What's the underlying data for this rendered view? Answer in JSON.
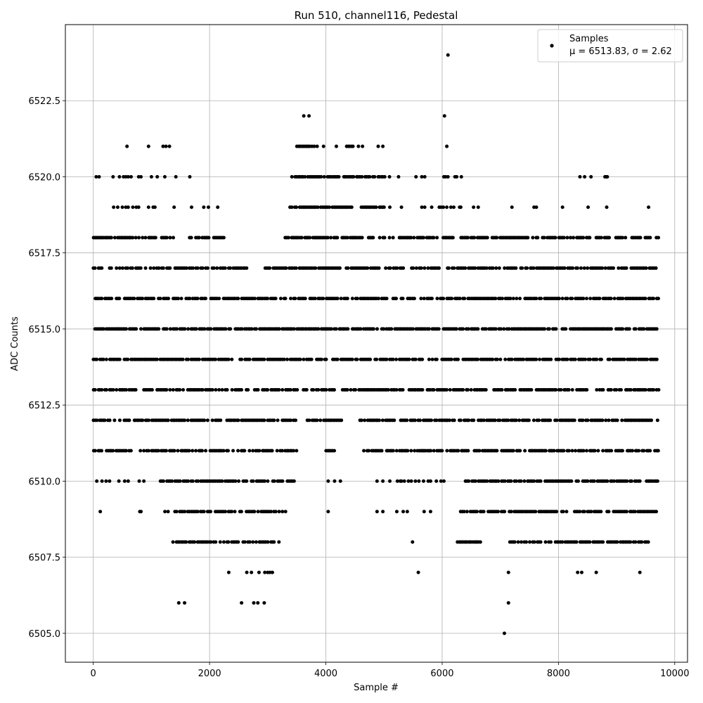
{
  "chart_data": {
    "type": "scatter",
    "title": "Run 510, channel116, Pedestal",
    "xlabel": "Sample #",
    "ylabel": "ADC Counts",
    "xlim": [
      -480,
      10220
    ],
    "ylim": [
      6504.05,
      6525.0
    ],
    "xticks": [
      0,
      2000,
      4000,
      6000,
      8000,
      10000
    ],
    "xtick_labels": [
      "0",
      "2000",
      "4000",
      "6000",
      "8000",
      "10000"
    ],
    "yticks": [
      6505.0,
      6507.5,
      6510.0,
      6512.5,
      6515.0,
      6517.5,
      6520.0,
      6522.5
    ],
    "ytick_labels": [
      "6505.0",
      "6507.5",
      "6510.0",
      "6512.5",
      "6515.0",
      "6517.5",
      "6520.0",
      "6522.5"
    ],
    "grid": true,
    "legend": {
      "placement": "top-right",
      "label": "Samples",
      "stats_text": "μ = 6513.83, σ = 2.62"
    },
    "stats": {
      "mean": 6513.83,
      "sigma": 2.62
    },
    "marker_color": "#000000",
    "sample_count_approx": 9720,
    "series": [
      {
        "name": "Samples",
        "level_ranges": [
          {
            "y": 6514,
            "ranges": [
              [
                0,
                9720
              ]
            ]
          },
          {
            "y": 6513,
            "ranges": [
              [
                0,
                9720
              ]
            ]
          },
          {
            "y": 6517,
            "ranges": [
              [
                0,
                2650
              ],
              [
                2950,
                9720
              ]
            ]
          },
          {
            "y": 6516,
            "ranges": [
              [
                0,
                9720
              ]
            ]
          },
          {
            "y": 6515,
            "ranges": [
              [
                30,
                9720
              ]
            ]
          },
          {
            "y": 6512,
            "ranges": [
              [
                0,
                3500
              ],
              [
                3650,
                4300
              ],
              [
                4580,
                9720
              ]
            ]
          },
          {
            "y": 6518,
            "ranges": [
              [
                0,
                1380
              ],
              [
                1650,
                2250
              ],
              [
                3300,
                9720
              ]
            ]
          },
          {
            "y": 6511,
            "ranges": [
              [
                0,
                650
              ],
              [
                750,
                3500
              ],
              [
                4000,
                4150
              ],
              [
                4650,
                6450
              ],
              [
                6550,
                9720
              ]
            ]
          },
          {
            "y": 6510,
            "ranges": [
              [
                1150,
                3450
              ],
              [
                6400,
                9720
              ]
            ]
          },
          {
            "y": 6509,
            "ranges": [
              [
                1230,
                3310
              ],
              [
                6260,
                9720
              ]
            ]
          },
          {
            "y": 6508,
            "ranges": [
              [
                1370,
                3210
              ],
              [
                6260,
                6660
              ],
              [
                7050,
                9620
              ]
            ]
          },
          {
            "y": 6519,
            "ranges": [
              [
                3380,
                4300
              ],
              [
                4300,
                5000
              ]
            ]
          },
          {
            "y": 6520,
            "ranges": [
              [
                3380,
                4500
              ],
              [
                4500,
                5100
              ]
            ]
          },
          {
            "y": 6521,
            "ranges": [
              [
                3500,
                3700
              ],
              [
                4350,
                4480
              ]
            ]
          }
        ],
        "points": [
          [
            50,
            6520
          ],
          [
            100,
            6520
          ],
          [
            340,
            6520
          ],
          [
            450,
            6520
          ],
          [
            520,
            6520
          ],
          [
            560,
            6520
          ],
          [
            600,
            6520
          ],
          [
            650,
            6520
          ],
          [
            780,
            6520
          ],
          [
            820,
            6520
          ],
          [
            1000,
            6520
          ],
          [
            1100,
            6520
          ],
          [
            1230,
            6520
          ],
          [
            1420,
            6520
          ],
          [
            1660,
            6520
          ],
          [
            5250,
            6520
          ],
          [
            5550,
            6520
          ],
          [
            5650,
            6520
          ],
          [
            5700,
            6520
          ],
          [
            6030,
            6520
          ],
          [
            6060,
            6520
          ],
          [
            6100,
            6520
          ],
          [
            6220,
            6520
          ],
          [
            6250,
            6520
          ],
          [
            6330,
            6520
          ],
          [
            8370,
            6520
          ],
          [
            8450,
            6520
          ],
          [
            8560,
            6520
          ],
          [
            8800,
            6520
          ],
          [
            8820,
            6520
          ],
          [
            8840,
            6520
          ],
          [
            580,
            6521
          ],
          [
            950,
            6521
          ],
          [
            1200,
            6521
          ],
          [
            1250,
            6521
          ],
          [
            1310,
            6521
          ],
          [
            3960,
            6521
          ],
          [
            4180,
            6521
          ],
          [
            4630,
            6521
          ],
          [
            4900,
            6521
          ],
          [
            4980,
            6521
          ],
          [
            6080,
            6521
          ],
          [
            3720,
            6521
          ],
          [
            3760,
            6521
          ],
          [
            3800,
            6521
          ],
          [
            3850,
            6521
          ],
          [
            4560,
            6521
          ],
          [
            3620,
            6522
          ],
          [
            3710,
            6522
          ],
          [
            6040,
            6522
          ],
          [
            6100,
            6524
          ],
          [
            350,
            6519
          ],
          [
            420,
            6519
          ],
          [
            500,
            6519
          ],
          [
            560,
            6519
          ],
          [
            600,
            6519
          ],
          [
            680,
            6519
          ],
          [
            740,
            6519
          ],
          [
            780,
            6519
          ],
          [
            950,
            6519
          ],
          [
            1030,
            6519
          ],
          [
            1060,
            6519
          ],
          [
            1390,
            6519
          ],
          [
            1690,
            6519
          ],
          [
            1900,
            6519
          ],
          [
            1980,
            6519
          ],
          [
            2140,
            6519
          ],
          [
            5100,
            6519
          ],
          [
            5300,
            6519
          ],
          [
            5650,
            6519
          ],
          [
            5700,
            6519
          ],
          [
            5820,
            6519
          ],
          [
            5950,
            6519
          ],
          [
            5980,
            6519
          ],
          [
            6020,
            6519
          ],
          [
            6080,
            6519
          ],
          [
            6150,
            6519
          ],
          [
            6200,
            6519
          ],
          [
            6300,
            6519
          ],
          [
            6320,
            6519
          ],
          [
            6540,
            6519
          ],
          [
            6620,
            6519
          ],
          [
            7200,
            6519
          ],
          [
            7580,
            6519
          ],
          [
            7620,
            6519
          ],
          [
            8070,
            6519
          ],
          [
            8510,
            6519
          ],
          [
            8830,
            6519
          ],
          [
            9550,
            6519
          ],
          [
            60,
            6510
          ],
          [
            150,
            6510
          ],
          [
            220,
            6510
          ],
          [
            280,
            6510
          ],
          [
            440,
            6510
          ],
          [
            540,
            6510
          ],
          [
            600,
            6510
          ],
          [
            790,
            6510
          ],
          [
            870,
            6510
          ],
          [
            4040,
            6510
          ],
          [
            4150,
            6510
          ],
          [
            4250,
            6510
          ],
          [
            4880,
            6510
          ],
          [
            4980,
            6510
          ],
          [
            5100,
            6510
          ],
          [
            5230,
            6510
          ],
          [
            5280,
            6510
          ],
          [
            5300,
            6510
          ],
          [
            5350,
            6510
          ],
          [
            5420,
            6510
          ],
          [
            5470,
            6510
          ],
          [
            5540,
            6510
          ],
          [
            5600,
            6510
          ],
          [
            5680,
            6510
          ],
          [
            5760,
            6510
          ],
          [
            5800,
            6510
          ],
          [
            5900,
            6510
          ],
          [
            5980,
            6510
          ],
          [
            6030,
            6510
          ],
          [
            120,
            6509
          ],
          [
            800,
            6509
          ],
          [
            820,
            6509
          ],
          [
            4040,
            6509
          ],
          [
            4880,
            6509
          ],
          [
            4980,
            6509
          ],
          [
            5220,
            6509
          ],
          [
            5330,
            6509
          ],
          [
            5400,
            6509
          ],
          [
            5690,
            6509
          ],
          [
            5800,
            6509
          ],
          [
            1820,
            6508
          ],
          [
            5490,
            6508
          ],
          [
            2330,
            6507
          ],
          [
            2640,
            6507
          ],
          [
            2720,
            6507
          ],
          [
            2850,
            6507
          ],
          [
            2950,
            6507
          ],
          [
            3000,
            6507
          ],
          [
            3040,
            6507
          ],
          [
            3080,
            6507
          ],
          [
            5590,
            6507
          ],
          [
            7140,
            6507
          ],
          [
            8330,
            6507
          ],
          [
            8400,
            6507
          ],
          [
            8650,
            6507
          ],
          [
            9400,
            6507
          ],
          [
            1470,
            6506
          ],
          [
            1570,
            6506
          ],
          [
            2550,
            6506
          ],
          [
            2760,
            6506
          ],
          [
            2830,
            6506
          ],
          [
            2940,
            6506
          ],
          [
            7140,
            6506
          ],
          [
            7070,
            6505
          ]
        ]
      }
    ]
  }
}
